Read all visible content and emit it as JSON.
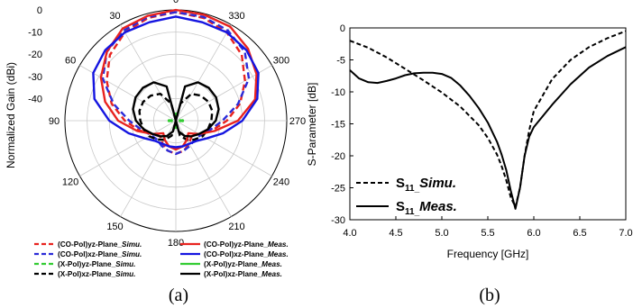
{
  "captions": [
    "(a)",
    "(b)"
  ],
  "chart_data": [
    {
      "type": "polar",
      "ylabel": "Normalized Gain (dBi)",
      "radial_ticks": [
        0,
        -10,
        -20,
        -30,
        -40
      ],
      "rlim": [
        -50,
        0
      ],
      "angle_ticks": [
        0,
        30,
        60,
        90,
        120,
        150,
        180,
        210,
        240,
        270,
        300,
        330
      ],
      "legend_placement": "bottom",
      "series": [
        {
          "name": "(CO-Pol)yz-Plane_Simu.",
          "name_plain": "(CO-Pol)yz-Plane_",
          "name_italic": "Simu.",
          "color": "#e8231f",
          "dash": true,
          "theta": [
            0,
            15,
            30,
            45,
            60,
            75,
            90,
            105,
            120,
            135,
            150,
            165,
            180,
            195,
            210,
            225,
            240,
            255,
            270,
            285,
            300,
            315,
            330,
            345
          ],
          "r": [
            -1,
            -2,
            -4,
            -8,
            -14,
            -20,
            -27,
            -33,
            -38,
            -40,
            -38,
            -36,
            -35,
            -36,
            -38,
            -40,
            -38,
            -33,
            -27,
            -20,
            -14,
            -8,
            -4,
            -2
          ]
        },
        {
          "name": "(CO-Pol)xz-Plane_Simu.",
          "name_plain": "(CO-Pol)xz-Plane_",
          "name_italic": "Simu.",
          "color": "#2b2bd8",
          "dash": true,
          "theta": [
            0,
            15,
            30,
            45,
            60,
            75,
            90,
            105,
            120,
            135,
            150,
            165,
            180,
            195,
            210,
            225,
            240,
            255,
            270,
            285,
            300,
            315,
            330,
            345
          ],
          "r": [
            -1,
            -1.5,
            -3,
            -6,
            -12,
            -21,
            -29,
            -34,
            -37,
            -38,
            -37,
            -36,
            -35,
            -36,
            -37,
            -38,
            -37,
            -34,
            -29,
            -21,
            -12,
            -6,
            -3,
            -1.5
          ]
        },
        {
          "name": "(X-Pol)yz-Plane_Simu.",
          "name_plain": "(X-Pol)yz-Plane_",
          "name_italic": "Simu.",
          "color": "#33cc33",
          "dash": true,
          "theta": [
            0,
            90,
            180,
            270
          ],
          "r": [
            -48,
            -48,
            -48,
            -48
          ]
        },
        {
          "name": "(X-Pol)xz-Plane_Simu.",
          "name_plain": "(X-Pol)xz-Plane_",
          "name_italic": "Simu.",
          "color": "#000000",
          "dash": true,
          "theta": [
            0,
            15,
            30,
            45,
            60,
            75,
            90,
            105,
            120,
            135,
            150,
            165,
            180,
            195,
            210,
            225,
            240,
            255,
            270,
            285,
            300,
            315,
            330,
            345
          ],
          "r": [
            -50,
            -42,
            -36,
            -34,
            -33,
            -33,
            -34,
            -35,
            -36,
            -38,
            -40,
            -43,
            -50,
            -43,
            -40,
            -38,
            -36,
            -35,
            -34,
            -33,
            -33,
            -34,
            -36,
            -42
          ]
        },
        {
          "name": "(CO-Pol)yz-Plane_Meas.",
          "name_plain": "(CO-Pol)yz-Plane_",
          "name_italic": "Meas.",
          "color": "#e8231f",
          "dash": false,
          "theta": [
            0,
            15,
            30,
            45,
            60,
            75,
            90,
            105,
            120,
            135,
            150,
            165,
            180,
            195,
            210,
            225,
            240,
            255,
            270,
            285,
            300,
            315,
            330,
            345
          ],
          "r": [
            0,
            -1,
            -2,
            -6,
            -11,
            -17,
            -24,
            -32,
            -38,
            -42,
            -40,
            -38,
            -37,
            -38,
            -40,
            -42,
            -38,
            -32,
            -22,
            -13,
            -8,
            -4,
            -1,
            -0.5
          ]
        },
        {
          "name": "(CO-Pol)xz-Plane_Meas.",
          "name_plain": "(CO-Pol)xz-Plane_",
          "name_italic": "Meas.",
          "color": "#1515e0",
          "dash": false,
          "theta": [
            0,
            15,
            30,
            45,
            60,
            75,
            90,
            105,
            120,
            135,
            150,
            165,
            180,
            195,
            210,
            225,
            240,
            255,
            270,
            285,
            300,
            315,
            330,
            345
          ],
          "r": [
            -3,
            -4,
            -4,
            -5,
            -7,
            -12,
            -20,
            -28,
            -34,
            -37,
            -38,
            -38,
            -38,
            -38,
            -38,
            -37,
            -34,
            -28,
            -20,
            -12,
            -7,
            -5,
            -4,
            -4
          ]
        },
        {
          "name": "(X-Pol)yz-Plane_Meas.",
          "name_plain": "(X-Pol)yz-Plane_",
          "name_italic": "Meas.",
          "color": "#33cc33",
          "dash": false,
          "theta": [
            0,
            90,
            180,
            270
          ],
          "r": [
            -47,
            -47,
            -47,
            -47
          ]
        },
        {
          "name": "(X-Pol)xz-Plane_Meas.",
          "name_plain": "(X-Pol)xz-Plane_",
          "name_italic": "Meas.",
          "color": "#000000",
          "dash": false,
          "theta": [
            0,
            15,
            30,
            45,
            60,
            75,
            90,
            105,
            120,
            135,
            150,
            165,
            180,
            195,
            210,
            225,
            240,
            255,
            270,
            285,
            300,
            315,
            330,
            345
          ],
          "r": [
            -50,
            -34,
            -30,
            -29,
            -29,
            -30,
            -32,
            -35,
            -38,
            -40,
            -42,
            -45,
            -50,
            -45,
            -42,
            -40,
            -38,
            -35,
            -32,
            -30,
            -29,
            -29,
            -30,
            -34
          ]
        }
      ]
    },
    {
      "type": "line",
      "xlabel": "Frequency [GHz]",
      "ylabel": "S-Parameter [dB]",
      "xlim": [
        4.0,
        7.0
      ],
      "ylim": [
        -30,
        0
      ],
      "xticks": [
        4.0,
        4.5,
        5.0,
        5.5,
        6.0,
        6.5,
        7.0
      ],
      "xtick_labels": [
        "4.0",
        "4.5",
        "5.0",
        "5.5",
        "6.0",
        "6.5",
        "7.0"
      ],
      "yticks": [
        0,
        -5,
        -10,
        -15,
        -20,
        -25,
        -30
      ],
      "ytick_labels": [
        "0",
        "-5",
        "-10",
        "-15",
        "-20",
        "-25",
        "-30"
      ],
      "legend_placement": "bottom-left",
      "series": [
        {
          "name": "S11_Simu.",
          "label_main": "S",
          "label_sub": "11",
          "label_sep": "_",
          "label_italic": "Simu.",
          "dash": true,
          "x": [
            4.0,
            4.2,
            4.4,
            4.6,
            4.8,
            5.0,
            5.2,
            5.4,
            5.5,
            5.6,
            5.65,
            5.7,
            5.75,
            5.8,
            5.85,
            5.9,
            5.95,
            6.0,
            6.2,
            6.4,
            6.6,
            6.8,
            7.0
          ],
          "y": [
            -2,
            -3.1,
            -4.6,
            -6.4,
            -8.2,
            -10.1,
            -12.3,
            -15.2,
            -17.2,
            -19.8,
            -21.6,
            -23.8,
            -26.5,
            -28.0,
            -25.0,
            -20.0,
            -16.0,
            -13.0,
            -8.0,
            -5.0,
            -3.0,
            -1.6,
            -0.5
          ]
        },
        {
          "name": "S11_Meas.",
          "label_main": "S",
          "label_sub": "11",
          "label_sep": "_",
          "label_italic": "Meas.",
          "dash": false,
          "x": [
            4.0,
            4.1,
            4.2,
            4.3,
            4.4,
            4.5,
            4.6,
            4.7,
            4.8,
            4.9,
            5.0,
            5.1,
            5.2,
            5.3,
            5.4,
            5.5,
            5.6,
            5.65,
            5.7,
            5.75,
            5.8,
            5.85,
            5.9,
            5.95,
            6.0,
            6.2,
            6.4,
            6.6,
            6.8,
            7.0
          ],
          "y": [
            -6.6,
            -7.9,
            -8.5,
            -8.6,
            -8.3,
            -7.9,
            -7.4,
            -7.1,
            -7.0,
            -7.0,
            -7.2,
            -7.8,
            -9.0,
            -10.6,
            -12.5,
            -14.8,
            -17.8,
            -19.8,
            -22.2,
            -25.5,
            -28.3,
            -25.0,
            -20.0,
            -17.0,
            -15.5,
            -12.0,
            -8.8,
            -6.2,
            -4.4,
            -3.0
          ]
        }
      ]
    }
  ]
}
